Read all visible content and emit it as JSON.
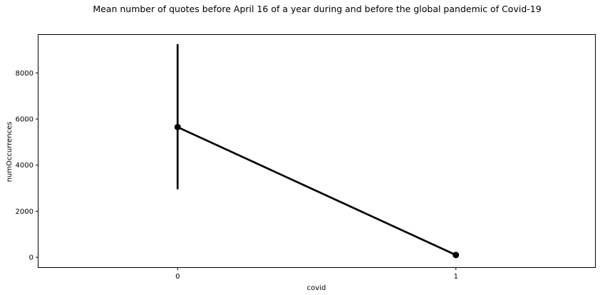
{
  "chart_data": {
    "type": "line",
    "title": "Mean number of quotes before April 16 of a year during and before the global pandemic of Covid-19",
    "xlabel": "covid",
    "ylabel": "numOccurrences",
    "categories": [
      "0",
      "1"
    ],
    "series": [
      {
        "values": [
          5650,
          100
        ],
        "error_low": [
          2950,
          90
        ],
        "error_high": [
          9250,
          110
        ],
        "color": "#000000"
      }
    ],
    "yticks": [
      0,
      2000,
      4000,
      6000,
      8000
    ],
    "ytick_labels": [
      "0",
      "2000",
      "4000",
      "6000",
      "8000"
    ],
    "xtick_labels": [
      "0",
      "1"
    ],
    "ylim": [
      -430,
      9650
    ],
    "xlim": [
      -0.5,
      1.5
    ],
    "grid": false,
    "legend": "none"
  }
}
